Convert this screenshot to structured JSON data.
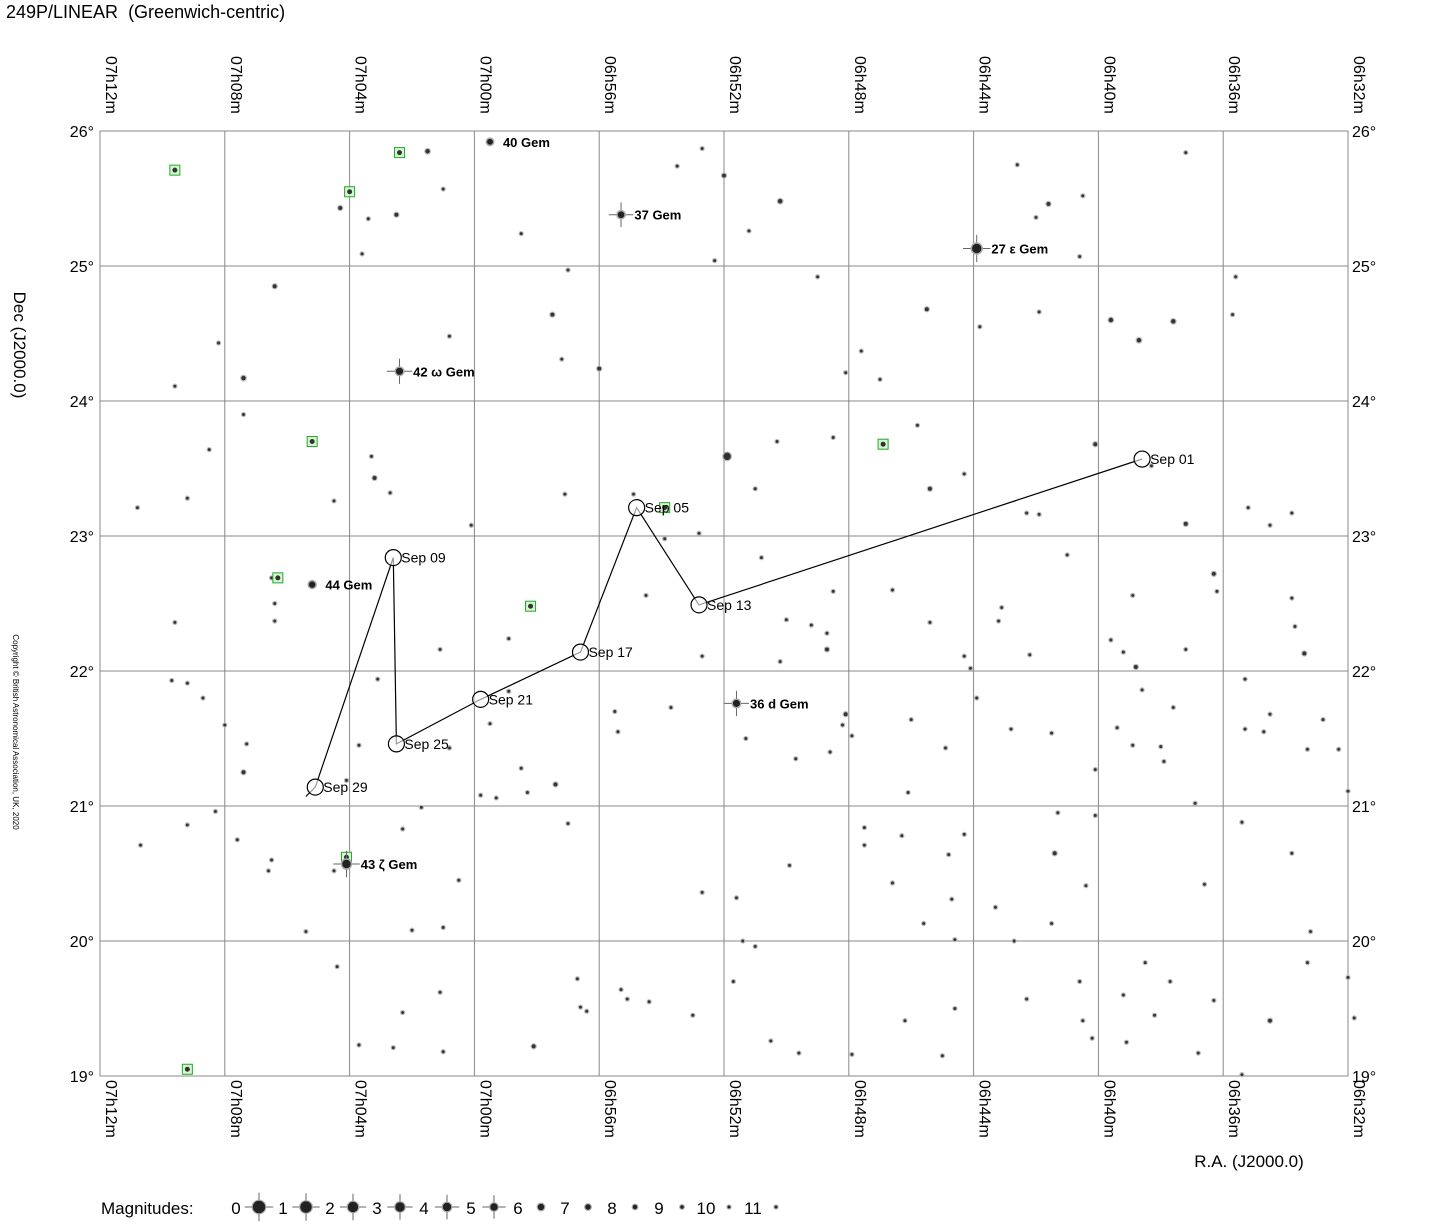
{
  "title": "249P/LINEAR  (Greenwich-centric)",
  "copyright": "Copyright © British Astronomical Association, UK, 2020",
  "legend": {
    "label": "Magnitudes:",
    "values": [
      "0",
      "1",
      "2",
      "3",
      "4",
      "5",
      "6",
      "7",
      "8",
      "9",
      "10",
      "11"
    ]
  },
  "chart_data": {
    "type": "scatter",
    "subtype": "star-chart",
    "xlabel": "R.A. (J2000.0)",
    "ylabel": "Dec (J2000.0)",
    "x_ticks": [
      "07h12m",
      "07h08m",
      "07h04m",
      "07h00m",
      "06h56m",
      "06h52m",
      "06h48m",
      "06h44m",
      "06h40m",
      "06h36m",
      "06h32m"
    ],
    "y_ticks": [
      "26°",
      "25°",
      "24°",
      "23°",
      "22°",
      "21°",
      "20°",
      "19°"
    ],
    "xlim_ra_minutes": [
      432,
      392
    ],
    "ylim_dec": [
      19,
      26
    ],
    "grid": true,
    "comet_path": [
      {
        "label": "Sep 01",
        "ra": 398.6,
        "dec": 23.57
      },
      {
        "label": "Sep 05",
        "ra": 414.8,
        "dec": 23.21
      },
      {
        "label": "Sep 09",
        "ra": 422.6,
        "dec": 22.84
      },
      {
        "label": "Sep 13",
        "ra": 412.8,
        "dec": 22.49
      },
      {
        "label": "Sep 17",
        "ra": 416.6,
        "dec": 22.14
      },
      {
        "label": "Sep 21",
        "ra": 419.8,
        "dec": 21.79
      },
      {
        "label": "Sep 25",
        "ra": 422.5,
        "dec": 21.46
      },
      {
        "label": "Sep 29",
        "ra": 425.1,
        "dec": 21.14
      }
    ],
    "path_extent": [
      {
        "ra": 398.6,
        "dec": 23.57
      },
      {
        "ra": 425.4,
        "dec": 21.07
      }
    ],
    "named_stars": [
      {
        "name": "40 Gem",
        "ra": 419.5,
        "dec": 25.92,
        "mag": 6.5
      },
      {
        "name": "37 Gem",
        "ra": 415.3,
        "dec": 25.38,
        "mag": 5.7
      },
      {
        "name": "27 ε Gem",
        "ra": 403.9,
        "dec": 25.13,
        "mag": 3.0
      },
      {
        "name": "42 ω Gem",
        "ra": 422.4,
        "dec": 24.22,
        "mag": 5.2
      },
      {
        "name": "44 Gem",
        "ra": 425.2,
        "dec": 22.64,
        "mag": 6.0
      },
      {
        "name": "36 d Gem",
        "ra": 411.6,
        "dec": 21.76,
        "mag": 5.3
      },
      {
        "name": "43 ζ Gem",
        "ra": 424.1,
        "dec": 20.57,
        "mag": 3.9
      }
    ],
    "stars": [
      [
        424.3,
        25.43,
        8.5
      ],
      [
        423.4,
        25.35,
        9.5
      ],
      [
        422.5,
        25.38,
        8.5
      ],
      [
        423.6,
        25.09,
        9.5
      ],
      [
        421.0,
        25.57,
        9.5
      ],
      [
        421.5,
        25.85,
        8.0
      ],
      [
        418.5,
        25.24,
        9.5
      ],
      [
        417.0,
        24.97,
        9.5
      ],
      [
        413.5,
        25.74,
        9.5
      ],
      [
        412.0,
        25.67,
        8.5
      ],
      [
        412.7,
        25.87,
        9.5
      ],
      [
        410.2,
        25.48,
        8.0
      ],
      [
        411.2,
        25.26,
        9.5
      ],
      [
        409.0,
        24.92,
        9.5
      ],
      [
        412.3,
        25.04,
        9.5
      ],
      [
        402.6,
        25.75,
        9.5
      ],
      [
        401.6,
        25.46,
        8.5
      ],
      [
        402.0,
        25.36,
        9.5
      ],
      [
        400.5,
        25.52,
        9.5
      ],
      [
        400.6,
        25.07,
        9.5
      ],
      [
        397.2,
        25.84,
        9.5
      ],
      [
        399.6,
        24.6,
        8.0
      ],
      [
        398.7,
        24.45,
        8.0
      ],
      [
        397.6,
        24.59,
        8.0
      ],
      [
        395.6,
        24.92,
        9.5
      ],
      [
        395.7,
        24.64,
        9.5
      ],
      [
        407.6,
        24.37,
        9.5
      ],
      [
        405.5,
        24.68,
        8.5
      ],
      [
        403.8,
        24.55,
        9.5
      ],
      [
        401.9,
        24.66,
        9.5
      ],
      [
        416.0,
        24.24,
        8.5
      ],
      [
        417.2,
        24.31,
        9.5
      ],
      [
        417.5,
        24.64,
        8.5
      ],
      [
        420.8,
        24.48,
        9.5
      ],
      [
        428.2,
        24.43,
        9.5
      ],
      [
        427.4,
        24.17,
        8.0
      ],
      [
        427.4,
        23.9,
        9.5
      ],
      [
        426.4,
        24.85,
        8.5
      ],
      [
        429.6,
        24.11,
        9.5
      ],
      [
        423.3,
        23.59,
        9.5
      ],
      [
        423.2,
        23.43,
        8.5
      ],
      [
        422.7,
        23.32,
        9.5
      ],
      [
        428.5,
        23.64,
        9.5
      ],
      [
        430.8,
        23.21,
        9.5
      ],
      [
        429.2,
        23.28,
        9.5
      ],
      [
        426.5,
        22.69,
        9.5
      ],
      [
        426.4,
        22.5,
        9.5
      ],
      [
        426.4,
        22.37,
        9.5
      ],
      [
        424.5,
        23.26,
        9.5
      ],
      [
        420.1,
        23.08,
        9.5
      ],
      [
        418.3,
        22.5,
        9.5
      ],
      [
        418.9,
        22.24,
        9.5
      ],
      [
        417.1,
        23.31,
        9.5
      ],
      [
        414.9,
        23.31,
        9.5
      ],
      [
        414.5,
        22.56,
        9.5
      ],
      [
        413.9,
        22.98,
        9.5
      ],
      [
        412.8,
        23.02,
        9.5
      ],
      [
        411.9,
        23.59,
        5.0
      ],
      [
        411.0,
        23.35,
        9.5
      ],
      [
        410.3,
        23.7,
        9.5
      ],
      [
        408.5,
        23.73,
        9.5
      ],
      [
        407.0,
        24.16,
        9.5
      ],
      [
        408.1,
        24.21,
        9.5
      ],
      [
        405.8,
        23.82,
        9.5
      ],
      [
        404.3,
        23.46,
        9.5
      ],
      [
        405.4,
        23.35,
        8.5
      ],
      [
        402.3,
        23.17,
        9.5
      ],
      [
        401.9,
        23.16,
        9.5
      ],
      [
        400.1,
        23.68,
        8.5
      ],
      [
        398.3,
        23.52,
        9.5
      ],
      [
        397.2,
        23.09,
        8.5
      ],
      [
        395.2,
        23.21,
        9.5
      ],
      [
        394.5,
        23.08,
        9.5
      ],
      [
        393.8,
        23.17,
        9.5
      ],
      [
        396.3,
        22.72,
        8.5
      ],
      [
        398.9,
        22.56,
        9.5
      ],
      [
        401.0,
        22.86,
        9.5
      ],
      [
        399.6,
        22.23,
        9.5
      ],
      [
        399.2,
        22.14,
        9.5
      ],
      [
        398.8,
        22.03,
        8.5
      ],
      [
        397.2,
        22.16,
        9.5
      ],
      [
        396.2,
        22.59,
        9.5
      ],
      [
        393.8,
        22.54,
        9.5
      ],
      [
        393.7,
        22.33,
        9.5
      ],
      [
        393.4,
        22.13,
        8.5
      ],
      [
        395.3,
        21.94,
        9.5
      ],
      [
        398.6,
        21.86,
        9.5
      ],
      [
        399.4,
        21.58,
        9.5
      ],
      [
        398.9,
        21.45,
        9.5
      ],
      [
        397.6,
        21.73,
        9.5
      ],
      [
        394.5,
        21.68,
        9.5
      ],
      [
        394.7,
        21.55,
        9.5
      ],
      [
        393.3,
        21.42,
        9.5
      ],
      [
        392.8,
        21.64,
        9.5
      ],
      [
        392.3,
        21.42,
        9.5
      ],
      [
        392.0,
        21.11,
        9.5
      ],
      [
        400.1,
        21.27,
        9.5
      ],
      [
        401.5,
        21.54,
        9.5
      ],
      [
        403.2,
        22.37,
        9.5
      ],
      [
        403.1,
        22.47,
        9.5
      ],
      [
        402.2,
        22.12,
        9.5
      ],
      [
        404.3,
        22.11,
        9.5
      ],
      [
        403.9,
        21.8,
        9.5
      ],
      [
        404.1,
        22.02,
        9.5
      ],
      [
        406.6,
        22.6,
        9.5
      ],
      [
        408.7,
        22.16,
        8.5
      ],
      [
        409.2,
        22.34,
        9.5
      ],
      [
        408.7,
        22.28,
        9.5
      ],
      [
        410.2,
        22.07,
        9.5
      ],
      [
        410.0,
        22.38,
        9.5
      ],
      [
        410.8,
        22.84,
        9.5
      ],
      [
        412.7,
        22.11,
        9.5
      ],
      [
        411.3,
        21.5,
        9.5
      ],
      [
        413.7,
        21.73,
        9.5
      ],
      [
        415.5,
        21.7,
        9.5
      ],
      [
        415.4,
        21.55,
        9.5
      ],
      [
        417.4,
        21.16,
        8.5
      ],
      [
        419.5,
        21.61,
        9.5
      ],
      [
        420.8,
        21.43,
        9.5
      ],
      [
        423.1,
        21.94,
        9.5
      ],
      [
        421.1,
        22.16,
        9.5
      ],
      [
        418.9,
        21.85,
        9.5
      ],
      [
        419.8,
        21.08,
        9.5
      ],
      [
        418.5,
        21.28,
        9.5
      ],
      [
        418.3,
        21.1,
        9.5
      ],
      [
        419.3,
        21.06,
        9.5
      ],
      [
        417.0,
        20.87,
        9.5
      ],
      [
        421.7,
        20.99,
        9.5
      ],
      [
        423.7,
        21.45,
        9.5
      ],
      [
        424.1,
        21.19,
        9.5
      ],
      [
        424.5,
        20.52,
        9.5
      ],
      [
        422.3,
        20.83,
        9.5
      ],
      [
        420.5,
        20.45,
        9.5
      ],
      [
        421.0,
        20.1,
        9.5
      ],
      [
        426.5,
        20.6,
        9.5
      ],
      [
        426.6,
        20.52,
        9.5
      ],
      [
        427.6,
        20.75,
        9.5
      ],
      [
        429.2,
        20.86,
        9.5
      ],
      [
        430.7,
        20.71,
        9.5
      ],
      [
        428.3,
        20.96,
        9.5
      ],
      [
        427.3,
        21.46,
        9.5
      ],
      [
        427.4,
        21.25,
        8.5
      ],
      [
        428.0,
        21.6,
        9.5
      ],
      [
        428.7,
        21.8,
        9.5
      ],
      [
        429.7,
        21.93,
        9.5
      ],
      [
        429.2,
        21.91,
        9.5
      ],
      [
        429.6,
        22.36,
        9.5
      ],
      [
        425.4,
        20.07,
        9.5
      ],
      [
        424.4,
        19.81,
        9.5
      ],
      [
        422.0,
        20.08,
        9.5
      ],
      [
        421.1,
        19.62,
        9.5
      ],
      [
        422.3,
        19.47,
        9.5
      ],
      [
        423.7,
        19.23,
        9.5
      ],
      [
        422.6,
        19.21,
        9.5
      ],
      [
        421.0,
        19.18,
        9.5
      ],
      [
        418.1,
        19.22,
        8.5
      ],
      [
        416.7,
        19.72,
        9.5
      ],
      [
        416.6,
        19.51,
        9.5
      ],
      [
        416.4,
        19.48,
        9.5
      ],
      [
        415.3,
        19.64,
        9.5
      ],
      [
        415.1,
        19.57,
        9.5
      ],
      [
        414.4,
        19.55,
        9.5
      ],
      [
        413.0,
        19.45,
        9.5
      ],
      [
        411.7,
        19.7,
        9.5
      ],
      [
        411.6,
        20.32,
        9.5
      ],
      [
        412.7,
        20.36,
        9.5
      ],
      [
        411.4,
        20.0,
        9.5
      ],
      [
        411.0,
        19.96,
        9.5
      ],
      [
        410.5,
        19.26,
        9.5
      ],
      [
        409.6,
        19.17,
        9.5
      ],
      [
        409.9,
        20.56,
        9.5
      ],
      [
        407.9,
        19.16,
        9.5
      ],
      [
        406.2,
        19.41,
        9.5
      ],
      [
        405.0,
        19.15,
        9.5
      ],
      [
        404.8,
        20.64,
        9.5
      ],
      [
        404.6,
        19.5,
        9.5
      ],
      [
        404.6,
        20.01,
        9.5
      ],
      [
        402.7,
        20.0,
        9.5
      ],
      [
        402.3,
        19.57,
        9.5
      ],
      [
        403.3,
        20.25,
        9.5
      ],
      [
        400.4,
        20.41,
        9.5
      ],
      [
        400.6,
        19.7,
        9.5
      ],
      [
        400.5,
        19.41,
        9.5
      ],
      [
        400.2,
        19.28,
        9.5
      ],
      [
        399.2,
        19.6,
        9.5
      ],
      [
        399.1,
        19.25,
        9.5
      ],
      [
        398.5,
        19.84,
        9.5
      ],
      [
        398.2,
        19.45,
        9.5
      ],
      [
        397.7,
        19.7,
        9.5
      ],
      [
        396.8,
        19.17,
        9.5
      ],
      [
        396.3,
        19.56,
        9.5
      ],
      [
        395.4,
        20.88,
        9.5
      ],
      [
        395.4,
        19.01,
        9.5
      ],
      [
        394.5,
        19.41,
        8.5
      ],
      [
        393.8,
        20.65,
        9.5
      ],
      [
        393.2,
        20.07,
        9.5
      ],
      [
        393.3,
        19.84,
        9.5
      ],
      [
        392.0,
        19.73,
        9.5
      ],
      [
        391.8,
        19.43,
        9.5
      ],
      [
        401.3,
        20.95,
        9.5
      ],
      [
        401.4,
        20.65,
        8.5
      ],
      [
        400.1,
        20.93,
        9.5
      ],
      [
        406.1,
        21.1,
        9.5
      ],
      [
        406.3,
        20.78,
        9.5
      ],
      [
        406.6,
        20.43,
        9.5
      ],
      [
        407.5,
        20.84,
        9.5
      ],
      [
        407.5,
        20.71,
        9.5
      ],
      [
        408.6,
        21.4,
        9.5
      ],
      [
        408.2,
        21.6,
        9.5
      ],
      [
        409.7,
        21.35,
        9.5
      ],
      [
        408.1,
        21.68,
        8.5
      ],
      [
        408.5,
        22.59,
        9.5
      ],
      [
        407.9,
        21.52,
        9.5
      ],
      [
        406.0,
        21.64,
        9.5
      ],
      [
        405.4,
        22.36,
        9.5
      ],
      [
        404.9,
        21.43,
        9.5
      ],
      [
        404.3,
        20.79,
        9.5
      ],
      [
        404.7,
        20.31,
        9.5
      ],
      [
        405.6,
        20.13,
        9.5
      ],
      [
        402.8,
        21.57,
        9.5
      ],
      [
        401.5,
        20.13,
        9.5
      ],
      [
        396.6,
        20.42,
        9.5
      ],
      [
        396.9,
        21.02,
        9.5
      ],
      [
        397.9,
        21.33,
        9.5
      ],
      [
        398.0,
        21.44,
        9.5
      ],
      [
        395.3,
        21.57,
        9.5
      ]
    ],
    "highlighted": [
      {
        "ra": 429.6,
        "dec": 25.71
      },
      {
        "ra": 422.4,
        "dec": 25.84
      },
      {
        "ra": 424.0,
        "dec": 25.55
      },
      {
        "ra": 425.2,
        "dec": 23.7
      },
      {
        "ra": 426.3,
        "dec": 22.69
      },
      {
        "ra": 418.2,
        "dec": 22.48
      },
      {
        "ra": 406.9,
        "dec": 23.68
      },
      {
        "ra": 413.9,
        "dec": 23.21
      },
      {
        "ra": 429.2,
        "dec": 19.05
      },
      {
        "ra": 424.1,
        "dec": 20.62
      }
    ]
  }
}
